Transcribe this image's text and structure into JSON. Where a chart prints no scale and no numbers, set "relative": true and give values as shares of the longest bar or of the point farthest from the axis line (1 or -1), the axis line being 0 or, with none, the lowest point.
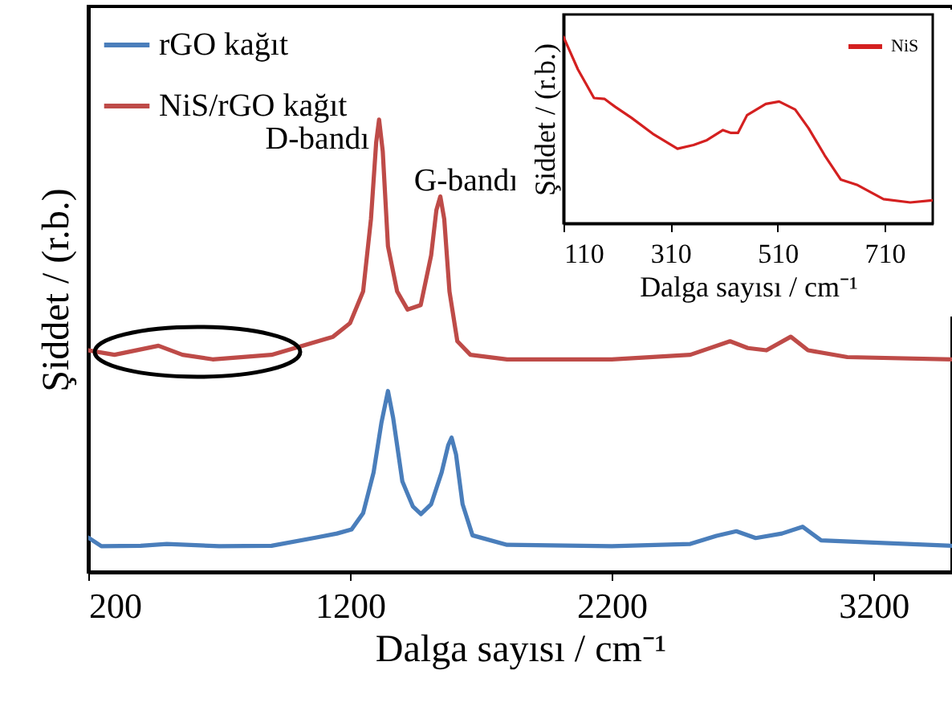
{
  "chart_data": [
    {
      "type": "line",
      "xlabel": "Dalga sayısı / cm⁻¹",
      "ylabel": "Şiddet / (r.b.)",
      "relative": true,
      "xlim": [
        200,
        3500
      ],
      "xticks": [
        200,
        1200,
        2200,
        3200
      ],
      "legend": "top left",
      "annotations": [
        {
          "text": "D-bandı",
          "x": 1311,
          "y": 1.0
        },
        {
          "text": "G-bandı",
          "x": 1545,
          "y": 0.83
        }
      ],
      "series": [
        {
          "name": "rGO kağıt",
          "color": "#4a7ebb",
          "x": [
            200,
            250,
            400,
            500,
            700,
            900,
            1068,
            1150,
            1206,
            1250,
            1290,
            1320,
            1345,
            1365,
            1400,
            1440,
            1471,
            1510,
            1550,
            1575,
            1588,
            1605,
            1630,
            1668,
            1800,
            2200,
            2500,
            2600,
            2676,
            2750,
            2850,
            2929,
            3000,
            3200,
            3500
          ],
          "values": [
            0.076,
            0.057,
            0.058,
            0.062,
            0.057,
            0.058,
            0.076,
            0.085,
            0.094,
            0.13,
            0.22,
            0.33,
            0.4,
            0.34,
            0.2,
            0.145,
            0.128,
            0.15,
            0.22,
            0.28,
            0.297,
            0.26,
            0.15,
            0.081,
            0.06,
            0.057,
            0.062,
            0.08,
            0.09,
            0.075,
            0.085,
            0.1,
            0.07,
            0.065,
            0.058
          ]
        },
        {
          "name": "NiS/rGO kağıt",
          "color": "#be4b48",
          "x": [
            200,
            300,
            468,
            560,
            675,
            900,
            1135,
            1200,
            1250,
            1280,
            1300,
            1311,
            1325,
            1345,
            1380,
            1420,
            1470,
            1510,
            1530,
            1545,
            1560,
            1580,
            1610,
            1660,
            1800,
            2200,
            2500,
            2652,
            2720,
            2791,
            2884,
            2950,
            3100,
            3500
          ],
          "values": [
            0.49,
            0.48,
            0.5,
            0.48,
            0.47,
            0.48,
            0.52,
            0.55,
            0.62,
            0.78,
            0.95,
            1.0,
            0.93,
            0.72,
            0.62,
            0.58,
            0.59,
            0.7,
            0.8,
            0.83,
            0.78,
            0.62,
            0.51,
            0.48,
            0.47,
            0.47,
            0.48,
            0.51,
            0.495,
            0.49,
            0.52,
            0.49,
            0.475,
            0.47
          ]
        }
      ]
    },
    {
      "type": "line",
      "xlabel": "Dalga sayısı / cm⁻¹",
      "ylabel": "Şiddet / (r.b.)",
      "relative": true,
      "xlim": [
        110,
        800
      ],
      "xticks": [
        110,
        310,
        510,
        710
      ],
      "legend": "top right",
      "series": [
        {
          "name": "NiS",
          "color": "#d42020",
          "x": [
            110,
            137,
            167,
            187,
            207,
            237,
            277,
            323,
            353,
            378,
            408,
            423,
            436,
            453,
            488,
            513,
            543,
            568,
            598,
            628,
            658,
            708,
            758,
            799
          ],
          "values": [
            1.0,
            0.825,
            0.672,
            0.667,
            0.624,
            0.566,
            0.48,
            0.4,
            0.42,
            0.446,
            0.5,
            0.485,
            0.485,
            0.58,
            0.64,
            0.653,
            0.61,
            0.51,
            0.365,
            0.235,
            0.207,
            0.13,
            0.112,
            0.123
          ]
        }
      ]
    }
  ]
}
